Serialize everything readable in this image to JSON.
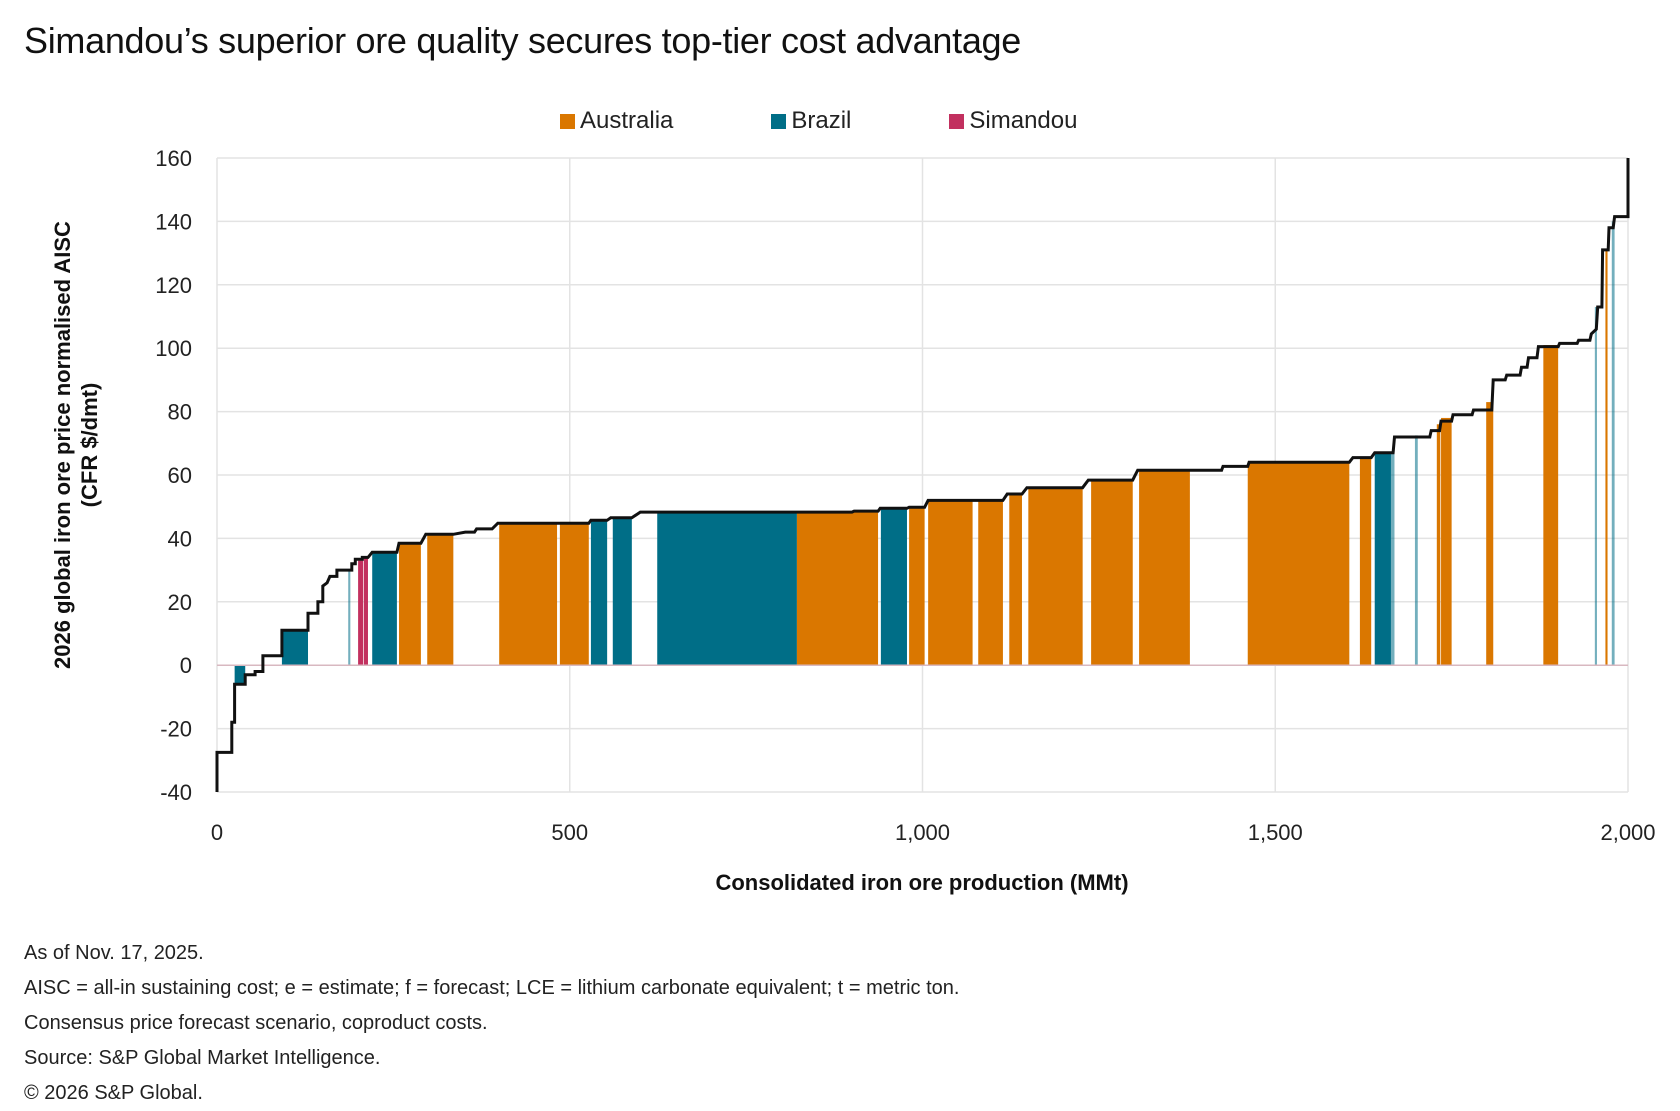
{
  "title": "Simandou’s superior ore quality secures top-tier cost advantage",
  "legend": [
    {
      "label": "Australia",
      "color": "#DA7700"
    },
    {
      "label": "Brazil",
      "color": "#006E87"
    },
    {
      "label": "Simandou",
      "color": "#C2305F"
    }
  ],
  "notes": [
    "As of Nov. 17, 2025.",
    "AISC = all-in sustaining cost; e = estimate; f = forecast; LCE = lithium carbonate equivalent; t = metric ton.",
    "Consensus price forecast scenario, coproduct costs.",
    "Source: S&P Global Market Intelligence.",
    "© 2026 S&P Global."
  ],
  "chart_data": {
    "type": "bar",
    "subtype": "cost-curve (variable-width step bars)",
    "title": "Simandou’s superior ore quality secures top-tier cost advantage",
    "xlabel": "Consolidated iron ore production (MMt)",
    "ylabel": "2026 global iron ore price normalised AISC (CFR $/dmt)",
    "xlim": [
      0,
      2000
    ],
    "ylim": [
      -40,
      160
    ],
    "x_ticks": [
      0,
      500,
      1000,
      1500,
      2000
    ],
    "x_tick_labels": [
      "0",
      "500",
      "1,000",
      "1,500",
      "2,000"
    ],
    "y_ticks": [
      -40,
      -20,
      0,
      20,
      40,
      60,
      80,
      100,
      120,
      140,
      160
    ],
    "y_tick_labels": [
      "-40",
      "-20",
      "0",
      "20",
      "40",
      "60",
      "80",
      "100",
      "120",
      "140",
      "160"
    ],
    "grid": true,
    "legend_position": "top-center",
    "series": [
      {
        "name": "Australia",
        "color": "#DA7700"
      },
      {
        "name": "Brazil",
        "color": "#006E87"
      },
      {
        "name": "Simandou",
        "color": "#C2305F"
      }
    ],
    "bars": [
      {
        "country": "Brazil",
        "x0": 25,
        "x1": 40,
        "value": -6
      },
      {
        "country": "Brazil",
        "x0": 92,
        "x1": 129,
        "value": 11
      },
      {
        "country": "Brazil",
        "x0": 186,
        "x1": 189,
        "value": 30,
        "light": true
      },
      {
        "country": "Simandou",
        "x0": 200,
        "x1": 207,
        "value": 33
      },
      {
        "country": "Simandou",
        "x0": 208,
        "x1": 214,
        "value": 34
      },
      {
        "country": "Brazil",
        "x0": 220,
        "x1": 255,
        "value": 35.6
      },
      {
        "country": "Australia",
        "x0": 258,
        "x1": 289,
        "value": 38.5
      },
      {
        "country": "Australia",
        "x0": 298,
        "x1": 335,
        "value": 41.3
      },
      {
        "country": "Australia",
        "x0": 400,
        "x1": 482,
        "value": 44.8
      },
      {
        "country": "Australia",
        "x0": 486,
        "x1": 527,
        "value": 45.2
      },
      {
        "country": "Brazil",
        "x0": 530,
        "x1": 553,
        "value": 45.7
      },
      {
        "country": "Brazil",
        "x0": 561,
        "x1": 588,
        "value": 46.5
      },
      {
        "country": "Brazil",
        "x0": 624,
        "x1": 822,
        "value": 48.3
      },
      {
        "country": "Australia",
        "x0": 822,
        "x1": 937,
        "value": 48.6
      },
      {
        "country": "Brazil",
        "x0": 941,
        "x1": 978,
        "value": 49.5
      },
      {
        "country": "Australia",
        "x0": 981,
        "x1": 1003,
        "value": 49.8
      },
      {
        "country": "Australia",
        "x0": 1008,
        "x1": 1071,
        "value": 52
      },
      {
        "country": "Australia",
        "x0": 1079,
        "x1": 1114,
        "value": 52
      },
      {
        "country": "Australia",
        "x0": 1123,
        "x1": 1141,
        "value": 54
      },
      {
        "country": "Australia",
        "x0": 1150,
        "x1": 1227,
        "value": 56
      },
      {
        "country": "Australia",
        "x0": 1239,
        "x1": 1298,
        "value": 58.4
      },
      {
        "country": "Australia",
        "x0": 1307,
        "x1": 1379,
        "value": 61.5
      },
      {
        "country": "Australia",
        "x0": 1461,
        "x1": 1605,
        "value": 64
      },
      {
        "country": "Australia",
        "x0": 1620,
        "x1": 1636,
        "value": 65.5
      },
      {
        "country": "Brazil",
        "x0": 1641,
        "x1": 1664,
        "value": 67
      },
      {
        "country": "Brazil",
        "x0": 1664,
        "x1": 1669,
        "value": 67,
        "light": true
      },
      {
        "country": "Brazil",
        "x0": 1698,
        "x1": 1702,
        "value": 72.5,
        "light": true
      },
      {
        "country": "Australia",
        "x0": 1729,
        "x1": 1734,
        "value": 76
      },
      {
        "country": "Australia",
        "x0": 1735,
        "x1": 1750,
        "value": 78
      },
      {
        "country": "Australia",
        "x0": 1799,
        "x1": 1809,
        "value": 83
      },
      {
        "country": "Australia",
        "x0": 1880,
        "x1": 1901,
        "value": 101
      },
      {
        "country": "Brazil",
        "x0": 1953,
        "x1": 1956,
        "value": 113,
        "light": true
      },
      {
        "country": "Australia",
        "x0": 1968,
        "x1": 1971,
        "value": 131
      },
      {
        "country": "Brazil",
        "x0": 1977,
        "x1": 1981,
        "value": 140,
        "light": true
      }
    ],
    "cost_curve": [
      [
        0,
        -40
      ],
      [
        0,
        -27.5
      ],
      [
        21,
        -27.5
      ],
      [
        21,
        -18
      ],
      [
        25,
        -18
      ],
      [
        25,
        -6
      ],
      [
        40,
        -6
      ],
      [
        40,
        -3
      ],
      [
        54,
        -3
      ],
      [
        54,
        -2
      ],
      [
        65,
        -2
      ],
      [
        65,
        3
      ],
      [
        92,
        3
      ],
      [
        92,
        11
      ],
      [
        129,
        11
      ],
      [
        129,
        16.4
      ],
      [
        143,
        16.4
      ],
      [
        143,
        20
      ],
      [
        150,
        20
      ],
      [
        150,
        25
      ],
      [
        156,
        26
      ],
      [
        160,
        28
      ],
      [
        170,
        28
      ],
      [
        170,
        30
      ],
      [
        191,
        30
      ],
      [
        191,
        32
      ],
      [
        196,
        32
      ],
      [
        196,
        33.4
      ],
      [
        206,
        33.4
      ],
      [
        206,
        34
      ],
      [
        214,
        34
      ],
      [
        220,
        35.6
      ],
      [
        255,
        35.6
      ],
      [
        258,
        38.5
      ],
      [
        289,
        38.5
      ],
      [
        296,
        41.3
      ],
      [
        335,
        41.3
      ],
      [
        352,
        42
      ],
      [
        365,
        42
      ],
      [
        368,
        43
      ],
      [
        390,
        43
      ],
      [
        398,
        44.8
      ],
      [
        527,
        44.8
      ],
      [
        530,
        45.7
      ],
      [
        553,
        45.7
      ],
      [
        558,
        46.5
      ],
      [
        588,
        46.5
      ],
      [
        600,
        48.3
      ],
      [
        900,
        48.3
      ],
      [
        903,
        48.6
      ],
      [
        937,
        48.6
      ],
      [
        940,
        49.5
      ],
      [
        978,
        49.5
      ],
      [
        981,
        49.8
      ],
      [
        1003,
        49.8
      ],
      [
        1008,
        52
      ],
      [
        1114,
        52
      ],
      [
        1120,
        54
      ],
      [
        1141,
        54
      ],
      [
        1148,
        56
      ],
      [
        1227,
        56
      ],
      [
        1235,
        58.4
      ],
      [
        1298,
        58.4
      ],
      [
        1305,
        61.5
      ],
      [
        1424,
        61.5
      ],
      [
        1426,
        62.7
      ],
      [
        1461,
        62.7
      ],
      [
        1463,
        64
      ],
      [
        1605,
        64
      ],
      [
        1610,
        65.5
      ],
      [
        1636,
        65.5
      ],
      [
        1641,
        67
      ],
      [
        1667,
        67
      ],
      [
        1669,
        72
      ],
      [
        1719,
        72
      ],
      [
        1721,
        74
      ],
      [
        1733,
        74
      ],
      [
        1735,
        77
      ],
      [
        1750,
        77
      ],
      [
        1752,
        79
      ],
      [
        1779,
        79
      ],
      [
        1781,
        80.5
      ],
      [
        1807,
        80.5
      ],
      [
        1809,
        90
      ],
      [
        1826,
        90
      ],
      [
        1828,
        91.5
      ],
      [
        1847,
        91.5
      ],
      [
        1849,
        94
      ],
      [
        1857,
        94
      ],
      [
        1859,
        97
      ],
      [
        1871,
        97
      ],
      [
        1873,
        100.5
      ],
      [
        1901,
        100.5
      ],
      [
        1903,
        101.5
      ],
      [
        1928,
        101.5
      ],
      [
        1930,
        102.5
      ],
      [
        1946,
        102.5
      ],
      [
        1948,
        104.5
      ],
      [
        1955,
        106
      ],
      [
        1957,
        113
      ],
      [
        1963,
        113
      ],
      [
        1964,
        131
      ],
      [
        1972,
        131
      ],
      [
        1973,
        138
      ],
      [
        1979,
        138
      ],
      [
        1981,
        141.5
      ],
      [
        2000,
        141.5
      ],
      [
        2000,
        160
      ]
    ]
  }
}
